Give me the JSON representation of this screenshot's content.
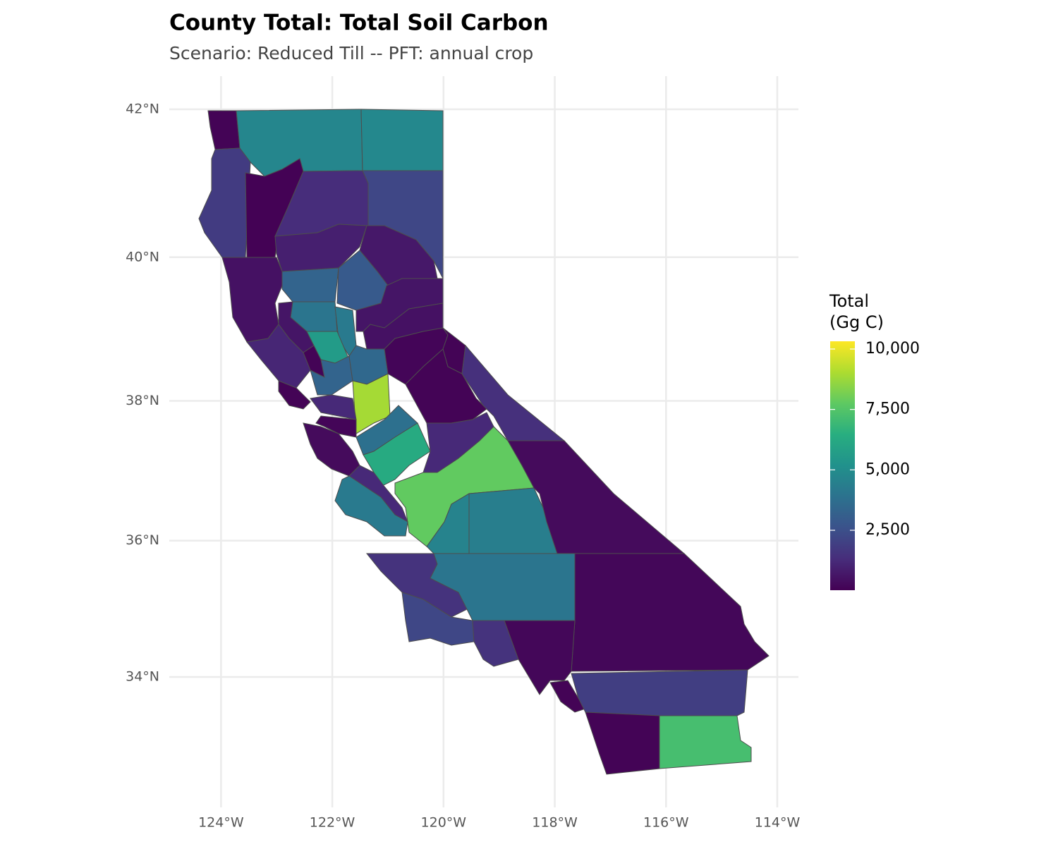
{
  "chart_data": {
    "type": "choropleth",
    "title": "County Total: Total Soil Carbon",
    "subtitle": "Scenario: Reduced Till  --  PFT: annual crop",
    "legend_title": [
      "Total",
      "(Gg C)"
    ],
    "colormap": "viridis",
    "grid": true,
    "xlim": [
      -124.93,
      -113.62
    ],
    "ylim": [
      32.04,
      42.44
    ],
    "xticks": [
      {
        "value": -124,
        "label": "124°W"
      },
      {
        "value": -122,
        "label": "122°W"
      },
      {
        "value": -120,
        "label": "120°W"
      },
      {
        "value": -118,
        "label": "118°W"
      },
      {
        "value": -116,
        "label": "116°W"
      },
      {
        "value": -114,
        "label": "114°W"
      }
    ],
    "yticks": [
      {
        "value": 34,
        "label": "34°N"
      },
      {
        "value": 36,
        "label": "36°N"
      },
      {
        "value": 38,
        "label": "38°N"
      },
      {
        "value": 40,
        "label": "40°N"
      },
      {
        "value": 42,
        "label": "42°N"
      }
    ],
    "clim": [
      20,
      10320
    ],
    "cticks": [
      {
        "value": 2500,
        "label": "2,500"
      },
      {
        "value": 5000,
        "label": "5,000"
      },
      {
        "value": 7500,
        "label": "7,500"
      },
      {
        "value": 10000,
        "label": "10,000"
      }
    ],
    "values": [
      100,
      4700,
      4800,
      1800,
      50,
      1300,
      2200,
      900,
      700,
      500,
      3300,
      2900,
      4000,
      600,
      4200,
      600,
      500,
      5600,
      1100,
      100,
      3300,
      3500,
      150,
      100,
      100,
      8900,
      1400,
      100,
      1200,
      150,
      3800,
      6300,
      1200,
      300,
      7800,
      1200,
      4200,
      4600,
      4400,
      300,
      1500,
      4000,
      200,
      2200,
      1500,
      200,
      100,
      1900,
      100,
      7200
    ]
  }
}
